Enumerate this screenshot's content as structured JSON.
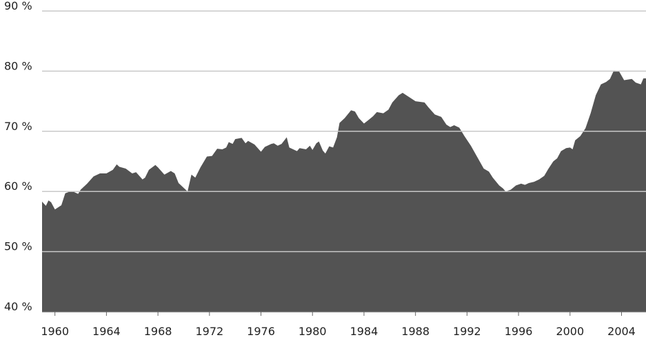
{
  "chart_data": {
    "type": "area",
    "color": "#535353",
    "grid": true,
    "xlim": [
      1959,
      2005.9
    ],
    "ylim": [
      40,
      90
    ],
    "xticks": [
      1960,
      1964,
      1968,
      1972,
      1976,
      1980,
      1984,
      1988,
      1992,
      1996,
      2000,
      2004
    ],
    "yticks": [
      {
        "value": 40,
        "label": "40 %"
      },
      {
        "value": 50,
        "label": "50 %"
      },
      {
        "value": 60,
        "label": "60 %"
      },
      {
        "value": 70,
        "label": "70 %"
      },
      {
        "value": 80,
        "label": "80 %"
      },
      {
        "value": 90,
        "label": "90 %"
      }
    ],
    "x": [
      1959.0,
      1959.3,
      1959.5,
      1959.7,
      1960.0,
      1960.5,
      1960.8,
      1961.3,
      1961.8,
      1962.0,
      1962.5,
      1963.0,
      1963.5,
      1964.0,
      1964.5,
      1964.8,
      1965.0,
      1965.5,
      1966.0,
      1966.3,
      1966.8,
      1967.0,
      1967.3,
      1967.8,
      1968.0,
      1968.5,
      1969.0,
      1969.3,
      1969.6,
      1970.0,
      1970.3,
      1970.6,
      1970.9,
      1971.3,
      1971.8,
      1972.2,
      1972.6,
      1973.0,
      1973.3,
      1973.5,
      1973.8,
      1974.0,
      1974.5,
      1974.8,
      1975.0,
      1975.5,
      1976.0,
      1976.3,
      1976.8,
      1977.0,
      1977.3,
      1977.6,
      1978.0,
      1978.2,
      1978.5,
      1978.8,
      1979.0,
      1979.5,
      1979.8,
      1980.0,
      1980.3,
      1980.5,
      1980.8,
      1981.0,
      1981.3,
      1981.6,
      1981.9,
      1982.1,
      1982.5,
      1983.0,
      1983.3,
      1983.6,
      1984.0,
      1984.3,
      1984.7,
      1985.0,
      1985.5,
      1985.9,
      1986.2,
      1986.7,
      1987.0,
      1987.5,
      1988.0,
      1988.7,
      1989.0,
      1989.5,
      1990.0,
      1990.4,
      1990.7,
      1991.0,
      1991.4,
      1991.8,
      1992.3,
      1992.8,
      1993.3,
      1993.7,
      1994.0,
      1994.5,
      1994.8,
      1995.0,
      1995.4,
      1995.8,
      1996.2,
      1996.5,
      1996.8,
      1997.2,
      1997.6,
      1998.0,
      1998.3,
      1998.7,
      1999.0,
      1999.3,
      1999.7,
      2000.0,
      2000.2,
      2000.4,
      2000.8,
      2001.2,
      2001.6,
      2002.0,
      2002.4,
      2002.8,
      2003.1,
      2003.4,
      2003.8,
      2004.2,
      2004.5,
      2004.8,
      2005.1,
      2005.5,
      2005.7,
      2005.9
    ],
    "values": [
      58.3,
      57.6,
      58.5,
      58.2,
      57.0,
      57.7,
      59.7,
      60.1,
      59.6,
      60.3,
      61.3,
      62.5,
      63.0,
      63.0,
      63.6,
      64.5,
      64.1,
      63.8,
      63.0,
      63.2,
      62.0,
      62.3,
      63.6,
      64.4,
      64.0,
      62.8,
      63.4,
      63.0,
      61.4,
      60.6,
      60.0,
      62.8,
      62.3,
      64.0,
      65.8,
      65.9,
      67.1,
      67.0,
      67.3,
      68.2,
      67.9,
      68.7,
      68.9,
      68.0,
      68.4,
      67.8,
      66.6,
      67.4,
      67.9,
      68.0,
      67.6,
      67.9,
      69.0,
      67.3,
      67.0,
      66.7,
      67.2,
      67.0,
      67.6,
      66.9,
      68.0,
      68.3,
      66.8,
      66.3,
      67.5,
      67.3,
      69.0,
      71.4,
      72.2,
      73.5,
      73.3,
      72.2,
      71.3,
      71.8,
      72.5,
      73.2,
      73.0,
      73.6,
      74.8,
      76.0,
      76.4,
      75.7,
      75.0,
      74.8,
      74.0,
      72.8,
      72.4,
      71.1,
      70.7,
      71.0,
      70.6,
      69.2,
      67.6,
      65.7,
      63.8,
      63.3,
      62.3,
      61.0,
      60.5,
      60.0,
      60.3,
      61.0,
      61.3,
      61.1,
      61.4,
      61.6,
      62.0,
      62.6,
      63.7,
      65.0,
      65.5,
      66.7,
      67.2,
      67.3,
      67.0,
      68.5,
      69.2,
      70.5,
      73.0,
      76.0,
      77.8,
      78.2,
      78.7,
      80.1,
      80.0,
      78.5,
      78.6,
      78.7,
      78.1,
      77.8,
      78.8,
      78.8
    ]
  }
}
